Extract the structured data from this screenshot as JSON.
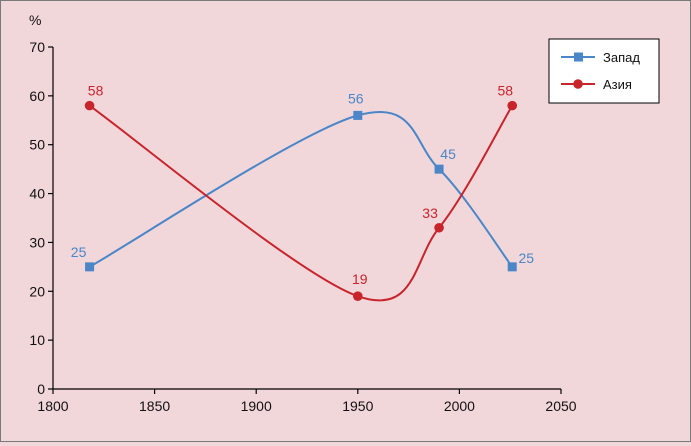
{
  "chart_data": {
    "type": "line",
    "title": "",
    "xlabel": "",
    "ylabel": "%",
    "xlim": [
      1800,
      2050
    ],
    "ylim": [
      0,
      70
    ],
    "x_ticks": [
      "1800",
      "1850",
      "1900",
      "1950",
      "2000",
      "2050"
    ],
    "y_ticks": [
      "0",
      "10",
      "20",
      "30",
      "40",
      "50",
      "60",
      "70"
    ],
    "grid": false,
    "legend_position": "top-right",
    "series": [
      {
        "name": "Запад",
        "color": "#4a86c8",
        "marker": "square",
        "smooth": true,
        "points": [
          {
            "x": 1818,
            "y": 25,
            "label": "25"
          },
          {
            "x": 1950,
            "y": 56,
            "label": "56"
          },
          {
            "x": 1990,
            "y": 45,
            "label": "45"
          },
          {
            "x": 2026,
            "y": 25,
            "label": "25"
          }
        ]
      },
      {
        "name": "Азия",
        "color": "#c8242c",
        "marker": "circle",
        "smooth": true,
        "points": [
          {
            "x": 1818,
            "y": 58,
            "label": "58"
          },
          {
            "x": 1950,
            "y": 19,
            "label": "19"
          },
          {
            "x": 1990,
            "y": 33,
            "label": "33"
          },
          {
            "x": 2026,
            "y": 58,
            "label": "58"
          }
        ]
      }
    ]
  }
}
